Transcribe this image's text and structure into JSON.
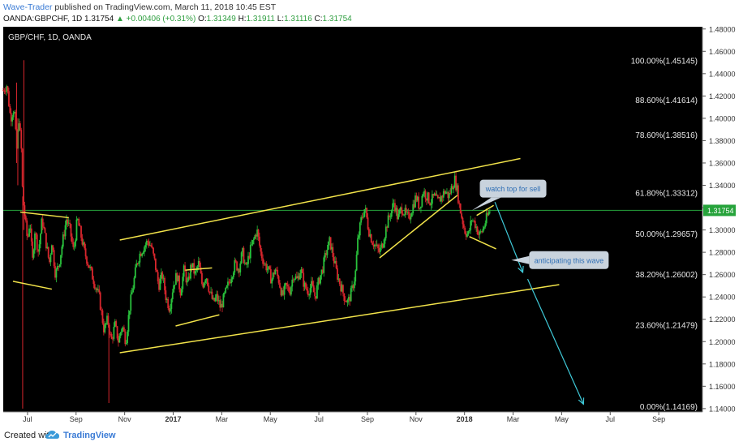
{
  "header": {
    "author": "Wave-Trader",
    "published": "published on TradingView.com, March 11, 2018 10:45 EST",
    "symbol": "OANDA:GBPCHF, 1D",
    "last": "1.31754",
    "change": "+0.00406 (+0.31%)",
    "o_label": "O:",
    "o_value": "1.31349",
    "h_label": "H:",
    "h_value": "1.31911",
    "l_label": "L:",
    "l_value": "1.31116",
    "c_label": "C:",
    "c_value": "1.31754"
  },
  "footer": {
    "created_with": "Created with",
    "brand": "TradingView"
  },
  "colors": {
    "background": "#000000",
    "up": "#29c13c",
    "down": "#d8262d",
    "trend": "#f2e34a",
    "arrow": "#3fc9d8",
    "price_line": "#26a33b",
    "axis_bg": "#ffffff"
  },
  "chart_data": {
    "type": "candlestick",
    "title": "GBP/CHF, 1D, OANDA",
    "ylim": [
      1.137,
      1.482
    ],
    "y_ticks": [
      "1.48000",
      "1.46000",
      "1.44000",
      "1.42000",
      "1.40000",
      "1.38000",
      "1.36000",
      "1.34000",
      "1.32000",
      "1.30000",
      "1.28000",
      "1.26000",
      "1.24000",
      "1.22000",
      "1.20000",
      "1.18000",
      "1.16000",
      "1.14000"
    ],
    "x_ticks": [
      {
        "label": "Jul",
        "m": 1.0
      },
      {
        "label": "Sep",
        "m": 3.0
      },
      {
        "label": "Nov",
        "m": 5.0
      },
      {
        "label": "2017",
        "m": 7.0
      },
      {
        "label": "Mar",
        "m": 9.0
      },
      {
        "label": "May",
        "m": 11.0
      },
      {
        "label": "Jul",
        "m": 13.0
      },
      {
        "label": "Sep",
        "m": 15.0
      },
      {
        "label": "Nov",
        "m": 17.0
      },
      {
        "label": "2018",
        "m": 19.0
      },
      {
        "label": "Mar",
        "m": 21.0
      },
      {
        "label": "May",
        "m": 23.0
      },
      {
        "label": "Jul",
        "m": 25.0
      },
      {
        "label": "Sep",
        "m": 27.0
      }
    ],
    "x_range_months": [
      0.0,
      28.8
    ],
    "current_price": 1.31754,
    "current_price_label": "1.31754",
    "price_path": [
      [
        0.0,
        1.425
      ],
      [
        0.15,
        1.43
      ],
      [
        0.3,
        1.4
      ],
      [
        0.45,
        1.41
      ],
      [
        0.55,
        1.37
      ],
      [
        0.65,
        1.4
      ],
      [
        0.75,
        1.37
      ],
      [
        0.8,
        1.33
      ],
      [
        0.9,
        1.31
      ],
      [
        1.0,
        1.29
      ],
      [
        1.1,
        1.31
      ],
      [
        1.2,
        1.27
      ],
      [
        1.3,
        1.3
      ],
      [
        1.45,
        1.28
      ],
      [
        1.6,
        1.31
      ],
      [
        1.75,
        1.29
      ],
      [
        1.9,
        1.27
      ],
      [
        2.0,
        1.29
      ],
      [
        2.15,
        1.26
      ],
      [
        2.3,
        1.27
      ],
      [
        2.45,
        1.29
      ],
      [
        2.6,
        1.31
      ],
      [
        2.75,
        1.3
      ],
      [
        2.9,
        1.28
      ],
      [
        3.05,
        1.31
      ],
      [
        3.2,
        1.295
      ],
      [
        3.35,
        1.28
      ],
      [
        3.5,
        1.27
      ],
      [
        3.65,
        1.26
      ],
      [
        3.8,
        1.25
      ],
      [
        3.95,
        1.24
      ],
      [
        4.05,
        1.225
      ],
      [
        4.15,
        1.21
      ],
      [
        4.3,
        1.22
      ],
      [
        4.45,
        1.2
      ],
      [
        4.6,
        1.215
      ],
      [
        4.75,
        1.2
      ],
      [
        4.9,
        1.215
      ],
      [
        5.05,
        1.2
      ],
      [
        5.2,
        1.23
      ],
      [
        5.35,
        1.25
      ],
      [
        5.5,
        1.27
      ],
      [
        5.65,
        1.28
      ],
      [
        5.8,
        1.285
      ],
      [
        5.95,
        1.29
      ],
      [
        6.1,
        1.285
      ],
      [
        6.25,
        1.27
      ],
      [
        6.4,
        1.25
      ],
      [
        6.55,
        1.26
      ],
      [
        6.7,
        1.24
      ],
      [
        6.85,
        1.23
      ],
      [
        7.0,
        1.25
      ],
      [
        7.15,
        1.26
      ],
      [
        7.3,
        1.245
      ],
      [
        7.45,
        1.265
      ],
      [
        7.6,
        1.25
      ],
      [
        7.75,
        1.27
      ],
      [
        7.9,
        1.26
      ],
      [
        8.05,
        1.27
      ],
      [
        8.2,
        1.25
      ],
      [
        8.35,
        1.26
      ],
      [
        8.5,
        1.245
      ],
      [
        8.65,
        1.235
      ],
      [
        8.8,
        1.24
      ],
      [
        8.95,
        1.23
      ],
      [
        9.1,
        1.24
      ],
      [
        9.25,
        1.25
      ],
      [
        9.4,
        1.26
      ],
      [
        9.55,
        1.27
      ],
      [
        9.7,
        1.265
      ],
      [
        9.85,
        1.28
      ],
      [
        10.0,
        1.265
      ],
      [
        10.15,
        1.28
      ],
      [
        10.3,
        1.29
      ],
      [
        10.45,
        1.3
      ],
      [
        10.6,
        1.28
      ],
      [
        10.75,
        1.27
      ],
      [
        10.9,
        1.265
      ],
      [
        11.05,
        1.255
      ],
      [
        11.2,
        1.265
      ],
      [
        11.35,
        1.255
      ],
      [
        11.5,
        1.24
      ],
      [
        11.65,
        1.25
      ],
      [
        11.8,
        1.245
      ],
      [
        11.95,
        1.26
      ],
      [
        12.1,
        1.255
      ],
      [
        12.25,
        1.265
      ],
      [
        12.4,
        1.25
      ],
      [
        12.55,
        1.245
      ],
      [
        12.7,
        1.25
      ],
      [
        12.85,
        1.24
      ],
      [
        13.0,
        1.255
      ],
      [
        13.15,
        1.265
      ],
      [
        13.3,
        1.28
      ],
      [
        13.45,
        1.29
      ],
      [
        13.6,
        1.275
      ],
      [
        13.75,
        1.26
      ],
      [
        13.9,
        1.25
      ],
      [
        14.05,
        1.24
      ],
      [
        14.2,
        1.235
      ],
      [
        14.35,
        1.245
      ],
      [
        14.5,
        1.26
      ],
      [
        14.6,
        1.29
      ],
      [
        14.75,
        1.31
      ],
      [
        14.9,
        1.32
      ],
      [
        15.05,
        1.3
      ],
      [
        15.2,
        1.29
      ],
      [
        15.35,
        1.285
      ],
      [
        15.5,
        1.28
      ],
      [
        15.65,
        1.29
      ],
      [
        15.8,
        1.305
      ],
      [
        15.95,
        1.315
      ],
      [
        16.1,
        1.325
      ],
      [
        16.25,
        1.31
      ],
      [
        16.4,
        1.32
      ],
      [
        16.55,
        1.315
      ],
      [
        16.7,
        1.31
      ],
      [
        16.85,
        1.32
      ],
      [
        17.0,
        1.33
      ],
      [
        17.15,
        1.32
      ],
      [
        17.3,
        1.335
      ],
      [
        17.45,
        1.33
      ],
      [
        17.6,
        1.325
      ],
      [
        17.75,
        1.33
      ],
      [
        17.9,
        1.325
      ],
      [
        18.05,
        1.33
      ],
      [
        18.2,
        1.335
      ],
      [
        18.35,
        1.33
      ],
      [
        18.5,
        1.34
      ],
      [
        18.6,
        1.345
      ],
      [
        18.7,
        1.335
      ],
      [
        18.8,
        1.32
      ],
      [
        18.9,
        1.31
      ],
      [
        19.0,
        1.3
      ],
      [
        19.15,
        1.295
      ],
      [
        19.3,
        1.31
      ],
      [
        19.45,
        1.305
      ],
      [
        19.6,
        1.295
      ],
      [
        19.75,
        1.3
      ],
      [
        19.9,
        1.31
      ],
      [
        20.05,
        1.3175
      ]
    ],
    "trend_lines": [
      {
        "name": "channel-top",
        "p1": [
          4.8,
          1.291
        ],
        "p2": [
          21.3,
          1.364
        ]
      },
      {
        "name": "channel-bottom",
        "p1": [
          4.8,
          1.19
        ],
        "p2": [
          22.9,
          1.251
        ]
      },
      {
        "name": "flag1-top",
        "p1": [
          0.7,
          1.316
        ],
        "p2": [
          2.7,
          1.311
        ]
      },
      {
        "name": "flag1-bottom",
        "p1": [
          0.4,
          1.254
        ],
        "p2": [
          2.0,
          1.247
        ]
      },
      {
        "name": "flag2-top",
        "p1": [
          7.5,
          1.264
        ],
        "p2": [
          8.6,
          1.266
        ]
      },
      {
        "name": "flag2-bottom",
        "p1": [
          7.1,
          1.214
        ],
        "p2": [
          8.9,
          1.224
        ]
      },
      {
        "name": "wedge-bottom",
        "p1": [
          15.5,
          1.275
        ],
        "p2": [
          18.7,
          1.331
        ]
      },
      {
        "name": "wedge2-top",
        "p1": [
          19.5,
          1.313
        ],
        "p2": [
          20.2,
          1.322
        ]
      },
      {
        "name": "wedge2-bottom",
        "p1": [
          19.2,
          1.294
        ],
        "p2": [
          20.3,
          1.283
        ]
      }
    ],
    "projection_arrow": [
      [
        20.25,
        1.325
      ],
      [
        21.4,
        1.262
      ],
      [
        21.6,
        1.256
      ],
      [
        23.9,
        1.144
      ]
    ],
    "fib_levels": [
      {
        "label": "100.00%(1.45145)",
        "value": 1.45145
      },
      {
        "label": "88.60%(1.41614)",
        "value": 1.41614
      },
      {
        "label": "78.60%(1.38516)",
        "value": 1.38516
      },
      {
        "label": "61.80%(1.33312)",
        "value": 1.33312
      },
      {
        "label": "50.00%(1.29657)",
        "value": 1.29657
      },
      {
        "label": "38.20%(1.26002)",
        "value": 1.26002
      },
      {
        "label": "23.60%(1.21479)",
        "value": 1.21479
      },
      {
        "label": "0.00%(1.14169)",
        "value": 1.14169
      }
    ],
    "annotations": [
      {
        "text": "watch top for sell",
        "m": 21.0,
        "y": 1.337
      },
      {
        "text": "anticipating this wave",
        "m": 23.3,
        "y": 1.273
      }
    ]
  }
}
